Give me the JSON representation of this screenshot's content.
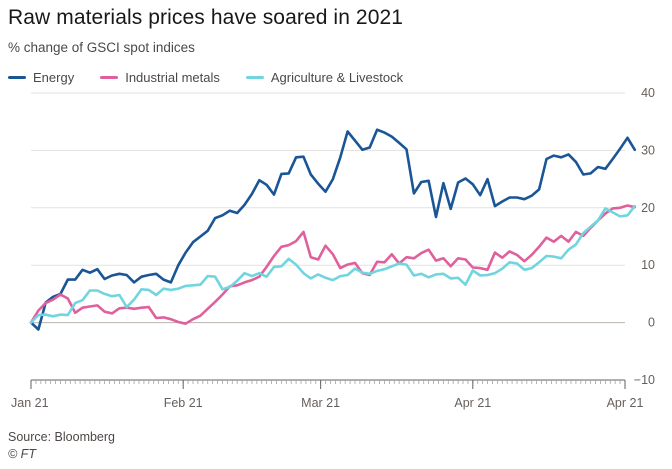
{
  "chart_data": {
    "type": "line",
    "title": "Raw materials prices have soared in 2021",
    "subtitle": "% change of GSCI spot indices",
    "source": "Source: Bloomberg",
    "credit": "© FT",
    "ylim": [
      -10,
      40
    ],
    "y_ticks": [
      40,
      30,
      20,
      10,
      0,
      -10
    ],
    "x_ticks": [
      {
        "label": "Jan 21",
        "day": 0
      },
      {
        "label": "Feb 21",
        "day": 31
      },
      {
        "label": "Mar 21",
        "day": 59
      },
      {
        "label": "Apr 21",
        "day": 90
      },
      {
        "label": "Apr 21",
        "day": 121
      }
    ],
    "x_range": [
      0,
      121
    ],
    "grid": true,
    "legend_position": "top-left",
    "series": [
      {
        "name": "Energy",
        "color": "#1a5596",
        "points": [
          [
            0,
            0
          ],
          [
            1.5,
            -1.2
          ],
          [
            3,
            3.5
          ],
          [
            4.5,
            4.5
          ],
          [
            6,
            5
          ],
          [
            7.5,
            7.5
          ],
          [
            9,
            7.5
          ],
          [
            10.5,
            9.2
          ],
          [
            12,
            8.7
          ],
          [
            13.5,
            9.3
          ],
          [
            15,
            7.6
          ],
          [
            16.5,
            8.2
          ],
          [
            18,
            8.5
          ],
          [
            19.5,
            8.3
          ],
          [
            21,
            7
          ],
          [
            22.5,
            8
          ],
          [
            24,
            8.3
          ],
          [
            25.5,
            8.5
          ],
          [
            27,
            7.5
          ],
          [
            28.5,
            7
          ],
          [
            30,
            10
          ],
          [
            31.5,
            12.2
          ],
          [
            33,
            14
          ],
          [
            34.5,
            15
          ],
          [
            36,
            16
          ],
          [
            37.5,
            18.2
          ],
          [
            39,
            18.7
          ],
          [
            40.5,
            19.5
          ],
          [
            42,
            19.1
          ],
          [
            43.5,
            20.5
          ],
          [
            45,
            22.4
          ],
          [
            46.5,
            24.8
          ],
          [
            48,
            24
          ],
          [
            49.5,
            22.3
          ],
          [
            51,
            25.9
          ],
          [
            52.5,
            26
          ],
          [
            54,
            28.8
          ],
          [
            55.5,
            28.9
          ],
          [
            57,
            25.8
          ],
          [
            58.5,
            24.2
          ],
          [
            60,
            22.8
          ],
          [
            61.5,
            25
          ],
          [
            63,
            28.8
          ],
          [
            64.5,
            33.3
          ],
          [
            66,
            31.7
          ],
          [
            67.5,
            30.1
          ],
          [
            69,
            30.5
          ],
          [
            70.5,
            33.6
          ],
          [
            72,
            33.1
          ],
          [
            73.5,
            32.4
          ],
          [
            75,
            31.3
          ],
          [
            76.5,
            30.2
          ],
          [
            78,
            22.5
          ],
          [
            79.5,
            24.5
          ],
          [
            81,
            24.7
          ],
          [
            82.5,
            18.4
          ],
          [
            84,
            24.3
          ],
          [
            85.5,
            19.8
          ],
          [
            87,
            24.4
          ],
          [
            88.5,
            25.1
          ],
          [
            90,
            24.1
          ],
          [
            91.5,
            22.2
          ],
          [
            93,
            25
          ],
          [
            94.5,
            20.3
          ],
          [
            96,
            21.1
          ],
          [
            97.5,
            21.8
          ],
          [
            99,
            21.8
          ],
          [
            100.5,
            21.5
          ],
          [
            102,
            22.1
          ],
          [
            103.5,
            23.2
          ],
          [
            105,
            28.5
          ],
          [
            106.5,
            29.1
          ],
          [
            108,
            28.8
          ],
          [
            109.5,
            29.3
          ],
          [
            111,
            28
          ],
          [
            112.5,
            25.8
          ],
          [
            114,
            26
          ],
          [
            115.5,
            27.1
          ],
          [
            117,
            26.8
          ],
          [
            118.5,
            28.5
          ],
          [
            120,
            30.3
          ],
          [
            121.5,
            32.2
          ],
          [
            123,
            30.1
          ]
        ]
      },
      {
        "name": "Industrial metals",
        "color": "#e0609c",
        "points": [
          [
            0,
            0
          ],
          [
            1.5,
            2.1
          ],
          [
            3,
            3.4
          ],
          [
            4.5,
            4
          ],
          [
            6,
            4.9
          ],
          [
            7.5,
            4.2
          ],
          [
            9,
            1.7
          ],
          [
            10.5,
            2.6
          ],
          [
            12,
            2.8
          ],
          [
            13.5,
            3
          ],
          [
            15,
            1.9
          ],
          [
            16.5,
            1.6
          ],
          [
            18,
            2.5
          ],
          [
            19.5,
            2.6
          ],
          [
            21,
            2.4
          ],
          [
            22.5,
            2.6
          ],
          [
            24,
            2.7
          ],
          [
            25.5,
            0.8
          ],
          [
            27,
            0.9
          ],
          [
            28.5,
            0.6
          ],
          [
            30,
            0.1
          ],
          [
            31.5,
            -0.2
          ],
          [
            33,
            0.6
          ],
          [
            34.5,
            1.2
          ],
          [
            36,
            2.4
          ],
          [
            37.5,
            3.6
          ],
          [
            39,
            4.9
          ],
          [
            40.5,
            6.3
          ],
          [
            42,
            6.5
          ],
          [
            43.5,
            7
          ],
          [
            45,
            7.4
          ],
          [
            46.5,
            8
          ],
          [
            48,
            9.7
          ],
          [
            49.5,
            11.6
          ],
          [
            51,
            13.2
          ],
          [
            52.5,
            13.5
          ],
          [
            54,
            14.2
          ],
          [
            55.5,
            15.8
          ],
          [
            57,
            11.4
          ],
          [
            58.5,
            11
          ],
          [
            60,
            13.4
          ],
          [
            61.5,
            11.9
          ],
          [
            63,
            9.5
          ],
          [
            64.5,
            10.1
          ],
          [
            66,
            10.4
          ],
          [
            67.5,
            8.6
          ],
          [
            69,
            8.3
          ],
          [
            70.5,
            10.6
          ],
          [
            72,
            10.5
          ],
          [
            73.5,
            11.9
          ],
          [
            75,
            10.3
          ],
          [
            76.5,
            11.4
          ],
          [
            78,
            11.2
          ],
          [
            79.5,
            12.1
          ],
          [
            81,
            12.7
          ],
          [
            82.5,
            10.8
          ],
          [
            84,
            11.2
          ],
          [
            85.5,
            9.8
          ],
          [
            87,
            11.2
          ],
          [
            88.5,
            11
          ],
          [
            90,
            9.6
          ],
          [
            91.5,
            9.5
          ],
          [
            93,
            9.2
          ],
          [
            94.5,
            12.2
          ],
          [
            96,
            11.3
          ],
          [
            97.5,
            12.4
          ],
          [
            99,
            11.8
          ],
          [
            100.5,
            10.7
          ],
          [
            102,
            11.8
          ],
          [
            103.5,
            13.2
          ],
          [
            105,
            14.8
          ],
          [
            106.5,
            14.1
          ],
          [
            108,
            15.1
          ],
          [
            109.5,
            14.1
          ],
          [
            111,
            15.8
          ],
          [
            112.5,
            15.1
          ],
          [
            114,
            16.5
          ],
          [
            115.5,
            17.8
          ],
          [
            117,
            19
          ],
          [
            118.5,
            19.9
          ],
          [
            120,
            20
          ],
          [
            121.5,
            20.4
          ],
          [
            123,
            20.1
          ]
        ]
      },
      {
        "name": "Agriculture & Livestock",
        "color": "#71d5e0",
        "points": [
          [
            0,
            0
          ],
          [
            1.5,
            1.3
          ],
          [
            3,
            1.4
          ],
          [
            4.5,
            1.1
          ],
          [
            6,
            1.4
          ],
          [
            7.5,
            1.3
          ],
          [
            9,
            3.4
          ],
          [
            10.5,
            3.9
          ],
          [
            12,
            5.6
          ],
          [
            13.5,
            5.6
          ],
          [
            15,
            5
          ],
          [
            16.5,
            4.6
          ],
          [
            18,
            4.8
          ],
          [
            19.5,
            2.7
          ],
          [
            21,
            4
          ],
          [
            22.5,
            5.8
          ],
          [
            24,
            5.7
          ],
          [
            25.5,
            4.8
          ],
          [
            27,
            5.9
          ],
          [
            28.5,
            5.7
          ],
          [
            30,
            5.9
          ],
          [
            31.5,
            6.4
          ],
          [
            33,
            6.5
          ],
          [
            34.5,
            6.6
          ],
          [
            36,
            8.1
          ],
          [
            37.5,
            8
          ],
          [
            39,
            5.8
          ],
          [
            40.5,
            6.2
          ],
          [
            42,
            7.3
          ],
          [
            43.5,
            8.6
          ],
          [
            45,
            8.1
          ],
          [
            46.5,
            8.6
          ],
          [
            48,
            8
          ],
          [
            49.5,
            9.7
          ],
          [
            51,
            9.8
          ],
          [
            52.5,
            11.1
          ],
          [
            54,
            10.1
          ],
          [
            55.5,
            8.6
          ],
          [
            57,
            7.7
          ],
          [
            58.5,
            8.4
          ],
          [
            60,
            7.8
          ],
          [
            61.5,
            7.4
          ],
          [
            63,
            8.1
          ],
          [
            64.5,
            8.3
          ],
          [
            66,
            9.4
          ],
          [
            67.5,
            8.7
          ],
          [
            69,
            8.5
          ],
          [
            70.5,
            9
          ],
          [
            72,
            9.3
          ],
          [
            73.5,
            9.8
          ],
          [
            75,
            10.3
          ],
          [
            76.5,
            10.1
          ],
          [
            78,
            8.2
          ],
          [
            79.5,
            8.5
          ],
          [
            81,
            7.9
          ],
          [
            82.5,
            8.4
          ],
          [
            84,
            8.5
          ],
          [
            85.5,
            7.7
          ],
          [
            87,
            7.8
          ],
          [
            88.5,
            6.6
          ],
          [
            90,
            9.1
          ],
          [
            91.5,
            8.2
          ],
          [
            93,
            8.3
          ],
          [
            94.5,
            8.6
          ],
          [
            96,
            9.4
          ],
          [
            97.5,
            10.5
          ],
          [
            99,
            10.3
          ],
          [
            100.5,
            9.2
          ],
          [
            102,
            9.5
          ],
          [
            103.5,
            10.5
          ],
          [
            105,
            11.6
          ],
          [
            106.5,
            11.5
          ],
          [
            108,
            11.2
          ],
          [
            109.5,
            12.7
          ],
          [
            111,
            13.6
          ],
          [
            112.5,
            15.6
          ],
          [
            114,
            16.7
          ],
          [
            115.5,
            17.8
          ],
          [
            117,
            19.9
          ],
          [
            118.5,
            19.2
          ],
          [
            120,
            18.5
          ],
          [
            121.5,
            18.7
          ],
          [
            123,
            20.3
          ]
        ]
      }
    ]
  }
}
